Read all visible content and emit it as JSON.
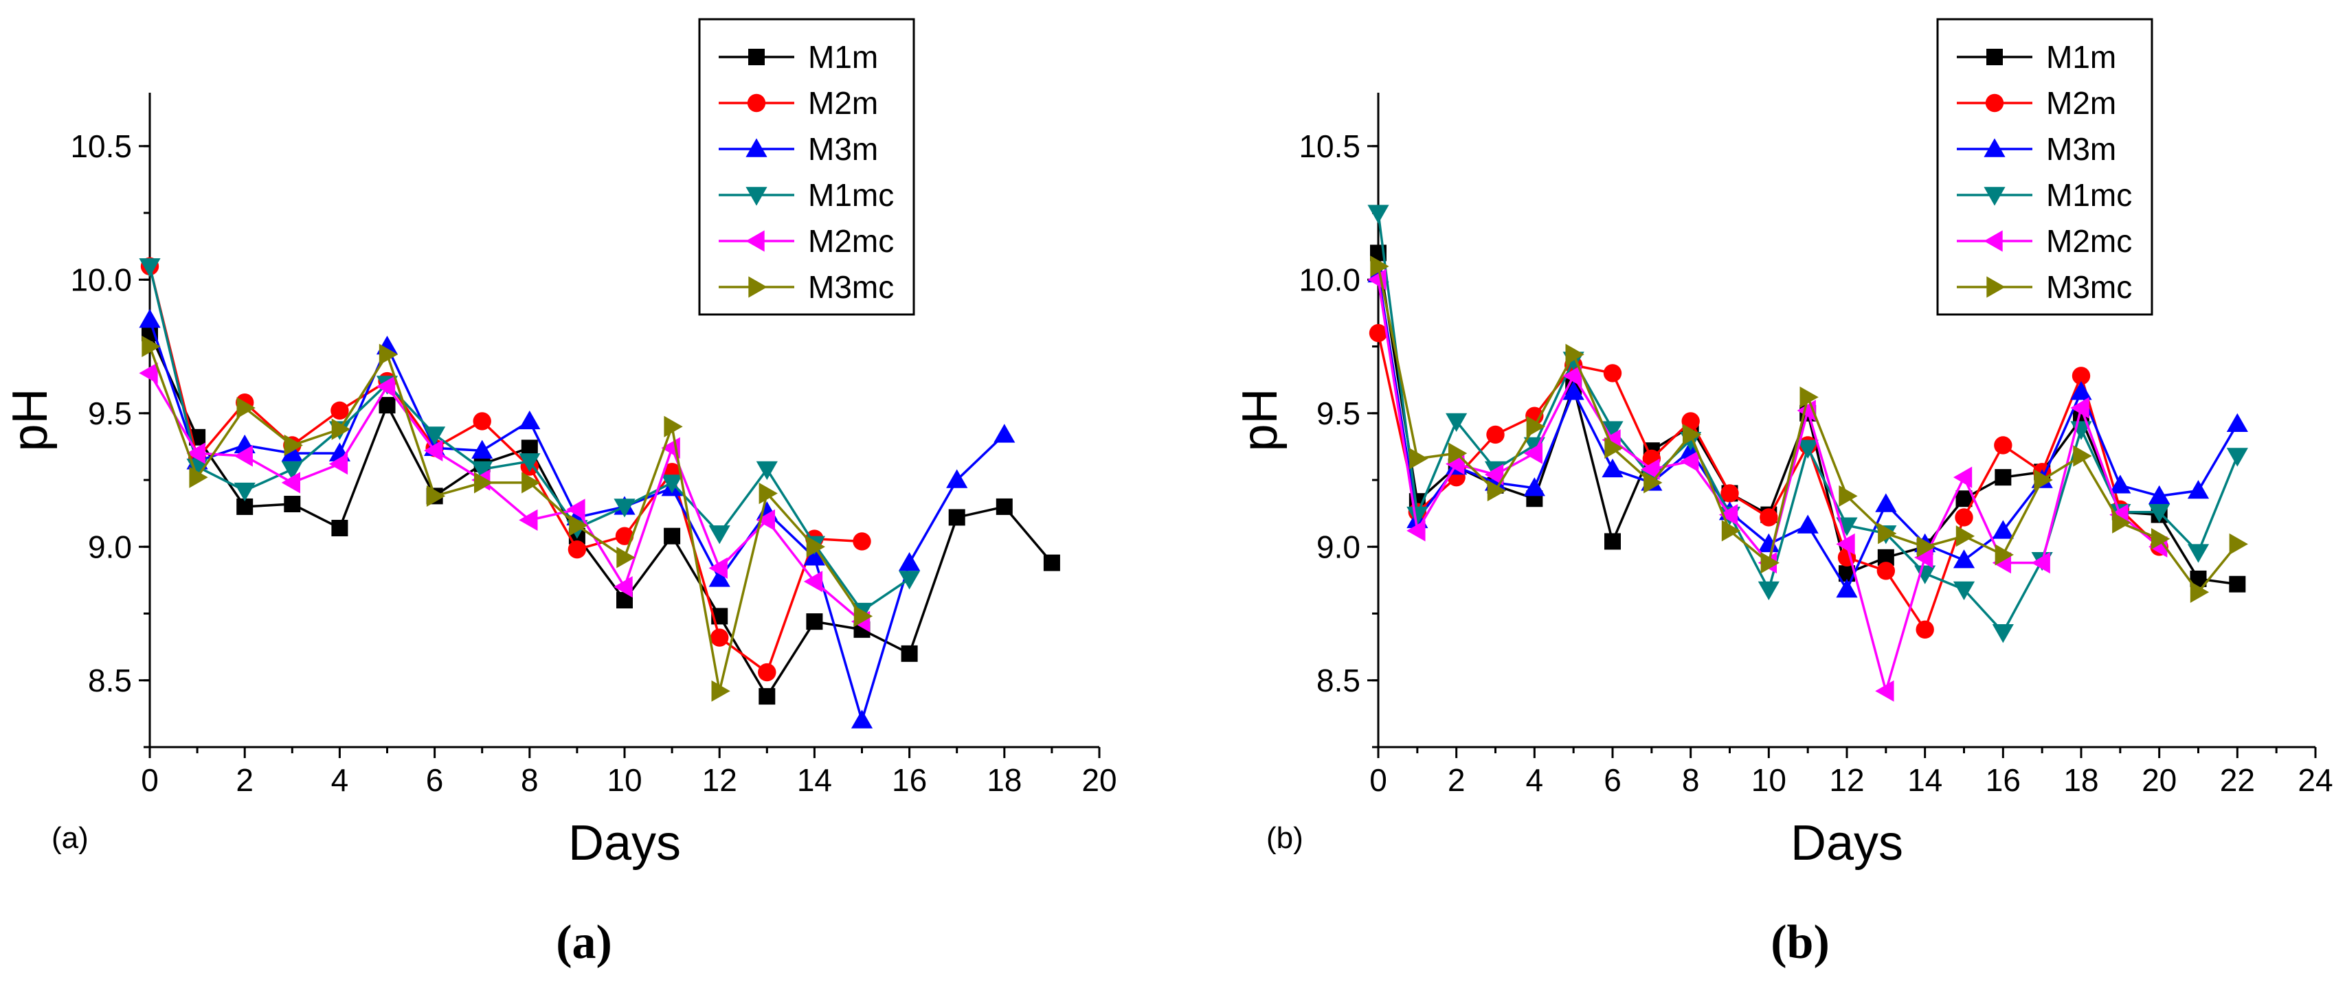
{
  "chart_data": [
    {
      "type": "line",
      "panel_label": "(a)",
      "caption": "(a)",
      "xlabel": "Days",
      "ylabel": "pH",
      "xlim": [
        0,
        20
      ],
      "ylim": [
        8.25,
        10.7
      ],
      "xticks": [
        0,
        2,
        4,
        6,
        8,
        10,
        12,
        14,
        16,
        18,
        20
      ],
      "yticks": [
        8.5,
        9.0,
        9.5,
        10.0,
        10.5
      ],
      "grid": false,
      "legend_position": "top-right",
      "series": [
        {
          "name": "M1m",
          "color": "#000000",
          "marker": "square",
          "x": [
            0,
            1,
            2,
            3,
            4,
            5,
            6,
            7,
            8,
            9,
            10,
            11,
            12,
            13,
            14,
            15,
            16,
            17,
            18,
            19
          ],
          "y": [
            9.8,
            9.41,
            9.15,
            9.16,
            9.07,
            9.53,
            9.19,
            9.31,
            9.37,
            9.04,
            8.8,
            9.04,
            8.74,
            8.44,
            8.72,
            8.69,
            8.6,
            9.11,
            9.15,
            8.94
          ]
        },
        {
          "name": "M2m",
          "color": "#ff0000",
          "marker": "circle",
          "x": [
            0,
            1,
            2,
            3,
            4,
            5,
            6,
            7,
            8,
            9,
            10,
            11,
            12,
            13,
            14,
            15
          ],
          "y": [
            10.05,
            9.33,
            9.54,
            9.38,
            9.51,
            9.62,
            9.37,
            9.47,
            9.3,
            8.99,
            9.04,
            9.28,
            8.66,
            8.53,
            9.03,
            9.02
          ]
        },
        {
          "name": "M3m",
          "color": "#0000ff",
          "marker": "triangle-up",
          "x": [
            0,
            1,
            2,
            3,
            4,
            5,
            6,
            7,
            8,
            9,
            10,
            11,
            12,
            13,
            14,
            15,
            16,
            17,
            18
          ],
          "y": [
            9.85,
            9.32,
            9.38,
            9.35,
            9.35,
            9.75,
            9.37,
            9.36,
            9.47,
            9.11,
            9.15,
            9.22,
            8.88,
            9.13,
            8.96,
            8.35,
            8.94,
            9.25,
            9.42
          ]
        },
        {
          "name": "M1mc",
          "color": "#008080",
          "marker": "triangle-down",
          "x": [
            0,
            1,
            2,
            3,
            4,
            5,
            6,
            7,
            8,
            9,
            10,
            11,
            12,
            13,
            14,
            15,
            16
          ],
          "y": [
            10.05,
            9.3,
            9.21,
            9.29,
            9.44,
            9.61,
            9.42,
            9.29,
            9.32,
            9.07,
            9.15,
            9.24,
            9.05,
            9.29,
            9.01,
            8.76,
            8.88
          ]
        },
        {
          "name": "M2mc",
          "color": "#ff00ff",
          "marker": "triangle-left",
          "x": [
            0,
            1,
            2,
            3,
            4,
            5,
            6,
            7,
            8,
            9,
            10,
            11,
            12,
            13,
            14,
            15
          ],
          "y": [
            9.65,
            9.35,
            9.34,
            9.24,
            9.31,
            9.6,
            9.36,
            9.25,
            9.1,
            9.14,
            8.85,
            9.37,
            8.92,
            9.1,
            8.87,
            8.72
          ]
        },
        {
          "name": "M3mc",
          "color": "#808000",
          "marker": "triangle-right",
          "x": [
            0,
            1,
            2,
            3,
            4,
            5,
            6,
            7,
            8,
            9,
            10,
            11,
            12,
            13,
            14,
            15
          ],
          "y": [
            9.75,
            9.26,
            9.52,
            9.38,
            9.44,
            9.72,
            9.19,
            9.24,
            9.24,
            9.08,
            8.96,
            9.45,
            8.46,
            9.2,
            9.0,
            8.74
          ]
        }
      ]
    },
    {
      "type": "line",
      "panel_label": "(b)",
      "caption": "(b)",
      "xlabel": "Days",
      "ylabel": "pH",
      "xlim": [
        0,
        24
      ],
      "ylim": [
        8.25,
        10.7
      ],
      "xticks": [
        0,
        2,
        4,
        6,
        8,
        10,
        12,
        14,
        16,
        18,
        20,
        22,
        24
      ],
      "yticks": [
        8.5,
        9.0,
        9.5,
        10.0,
        10.5
      ],
      "grid": false,
      "legend_position": "top-right",
      "series": [
        {
          "name": "M1m",
          "color": "#000000",
          "marker": "square",
          "x": [
            0,
            1,
            2,
            3,
            4,
            5,
            6,
            7,
            8,
            9,
            10,
            11,
            12,
            13,
            14,
            15,
            16,
            17,
            18,
            19,
            20,
            21,
            22
          ],
          "y": [
            10.1,
            9.17,
            9.3,
            9.23,
            9.18,
            9.6,
            9.02,
            9.36,
            9.45,
            9.2,
            9.12,
            9.5,
            8.9,
            8.96,
            9.0,
            9.18,
            9.26,
            9.28,
            9.48,
            9.13,
            9.12,
            8.88,
            8.86
          ]
        },
        {
          "name": "M2m",
          "color": "#ff0000",
          "marker": "circle",
          "x": [
            0,
            1,
            2,
            3,
            4,
            5,
            6,
            7,
            8,
            9,
            10,
            11,
            12,
            13,
            14,
            15,
            16,
            17,
            18,
            19,
            20
          ],
          "y": [
            9.8,
            9.13,
            9.26,
            9.42,
            9.49,
            9.68,
            9.65,
            9.33,
            9.47,
            9.2,
            9.11,
            9.38,
            8.96,
            8.91,
            8.69,
            9.11,
            9.38,
            9.28,
            9.64,
            9.14,
            9.0
          ]
        },
        {
          "name": "M3m",
          "color": "#0000ff",
          "marker": "triangle-up",
          "x": [
            0,
            1,
            2,
            3,
            4,
            5,
            6,
            7,
            8,
            9,
            10,
            11,
            12,
            13,
            14,
            15,
            16,
            17,
            18,
            19,
            20,
            21,
            22
          ],
          "y": [
            10.02,
            9.1,
            9.3,
            9.24,
            9.22,
            9.58,
            9.29,
            9.24,
            9.36,
            9.13,
            9.01,
            9.08,
            8.84,
            9.16,
            9.01,
            8.95,
            9.06,
            9.25,
            9.58,
            9.23,
            9.19,
            9.21,
            9.46
          ]
        },
        {
          "name": "M1mc",
          "color": "#008080",
          "marker": "triangle-down",
          "x": [
            0,
            1,
            2,
            3,
            4,
            5,
            6,
            7,
            8,
            9,
            10,
            11,
            12,
            13,
            14,
            15,
            16,
            17,
            18,
            19,
            20,
            21,
            22
          ],
          "y": [
            10.25,
            9.12,
            9.47,
            9.29,
            9.38,
            9.7,
            9.44,
            9.26,
            9.4,
            9.12,
            8.84,
            9.37,
            9.08,
            9.05,
            8.9,
            8.84,
            8.68,
            8.95,
            9.44,
            9.13,
            9.13,
            8.98,
            9.34
          ]
        },
        {
          "name": "M2mc",
          "color": "#ff00ff",
          "marker": "triangle-left",
          "x": [
            0,
            1,
            2,
            3,
            4,
            5,
            6,
            7,
            8,
            9,
            10,
            11,
            12,
            13,
            14,
            15,
            16,
            17,
            18,
            19,
            20
          ],
          "y": [
            10.0,
            9.06,
            9.31,
            9.27,
            9.35,
            9.64,
            9.4,
            9.29,
            9.32,
            9.12,
            8.94,
            9.51,
            9.01,
            8.46,
            8.96,
            9.26,
            8.94,
            8.94,
            9.52,
            9.12,
            9.0
          ]
        },
        {
          "name": "M3mc",
          "color": "#808000",
          "marker": "triangle-right",
          "x": [
            0,
            1,
            2,
            3,
            4,
            5,
            6,
            7,
            8,
            9,
            10,
            11,
            12,
            13,
            14,
            15,
            16,
            17,
            18,
            19,
            20,
            21,
            22
          ],
          "y": [
            10.05,
            9.33,
            9.35,
            9.21,
            9.45,
            9.72,
            9.37,
            9.24,
            9.42,
            9.06,
            8.94,
            9.56,
            9.19,
            9.05,
            9.0,
            9.04,
            8.97,
            9.25,
            9.34,
            9.09,
            9.03,
            8.83,
            9.01
          ]
        }
      ]
    }
  ]
}
